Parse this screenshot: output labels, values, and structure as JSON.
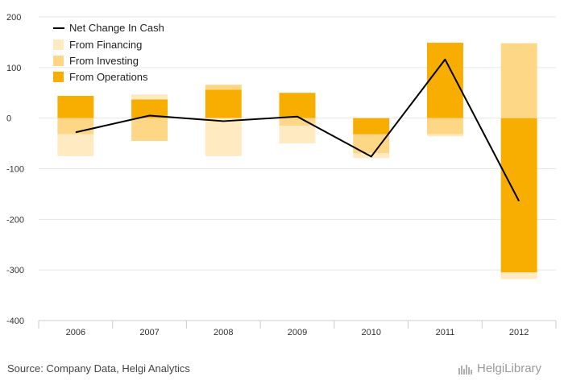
{
  "colors": {
    "financing": "#FFEAC2",
    "investing": "#FDD785",
    "operations": "#F7AE00",
    "net": "#000000",
    "grid": "#e6e6e6",
    "axis": "#cccccc",
    "brand": "#9a9a9a"
  },
  "legend": {
    "net": "Net Change In Cash",
    "financing": "From Financing",
    "investing": "From Investing",
    "operations": "From Operations"
  },
  "source": "Source: Company Data, Helgi Analytics",
  "brand": {
    "text": "HelgiLibrary",
    "icon": "helgi-logo-icon"
  },
  "chart_data": {
    "type": "bar",
    "stacked": true,
    "categories": [
      "2006",
      "2007",
      "2008",
      "2009",
      "2010",
      "2011",
      "2012"
    ],
    "series": [
      {
        "name": "From Operations",
        "values": [
          44,
          37,
          56,
          50,
          -32,
          149,
          -305
        ]
      },
      {
        "name": "From Investing",
        "values": [
          -32,
          -45,
          10,
          -15,
          -37,
          -32,
          148
        ]
      },
      {
        "name": "From Financing",
        "values": [
          -43,
          10,
          -75,
          -35,
          -10,
          -4,
          -13
        ]
      }
    ],
    "net_change": {
      "name": "Net Change In Cash",
      "values": [
        -28,
        5,
        -6,
        3,
        -76,
        116,
        -164
      ]
    },
    "ylim": [
      -400,
      200
    ],
    "yticks": [
      -400,
      -300,
      -200,
      -100,
      0,
      100,
      200
    ],
    "grid": true,
    "legend_position": "top-left"
  }
}
